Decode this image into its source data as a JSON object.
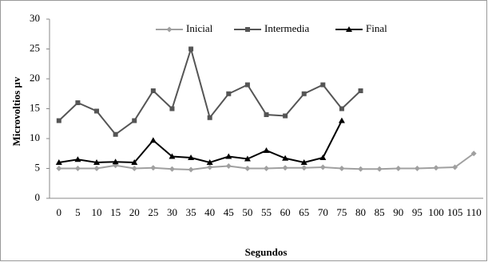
{
  "chart_data": {
    "type": "line",
    "x_label": "Segundos",
    "y_label": "Microvoltios µv",
    "categories": [
      "0",
      "5",
      "10",
      "15",
      "20",
      "25",
      "30",
      "35",
      "40",
      "45",
      "50",
      "55",
      "60",
      "65",
      "70",
      "75",
      "80",
      "85",
      "90",
      "95",
      "100",
      "105",
      "110"
    ],
    "series": [
      {
        "name": "Inicial",
        "color": "#a0a0a0",
        "marker": "diamond",
        "values": [
          5,
          5,
          5,
          5.5,
          5,
          5.1,
          4.9,
          4.8,
          5.2,
          5.4,
          5,
          5,
          5.1,
          5.1,
          5.2,
          5,
          4.9,
          4.9,
          5,
          5,
          5.1,
          5.2,
          7.5
        ]
      },
      {
        "name": "Intermedia",
        "color": "#555555",
        "marker": "square",
        "values": [
          13,
          16,
          14.6,
          10.7,
          13,
          18,
          15,
          25,
          13.5,
          17.5,
          19,
          14,
          13.8,
          17.5,
          19,
          15,
          18,
          null,
          null,
          null,
          null,
          null,
          null
        ]
      },
      {
        "name": "Final",
        "color": "#000000",
        "marker": "triangle",
        "values": [
          6,
          6.5,
          6,
          6.1,
          6,
          9.7,
          7,
          6.8,
          6,
          7,
          6.6,
          8,
          6.7,
          6,
          6.8,
          13,
          null,
          null,
          null,
          null,
          null,
          null,
          null
        ]
      }
    ],
    "ylim": [
      0,
      30
    ],
    "yticks": [
      0,
      5,
      10,
      15,
      20,
      25,
      30
    ],
    "grid": false,
    "legend": "top"
  }
}
